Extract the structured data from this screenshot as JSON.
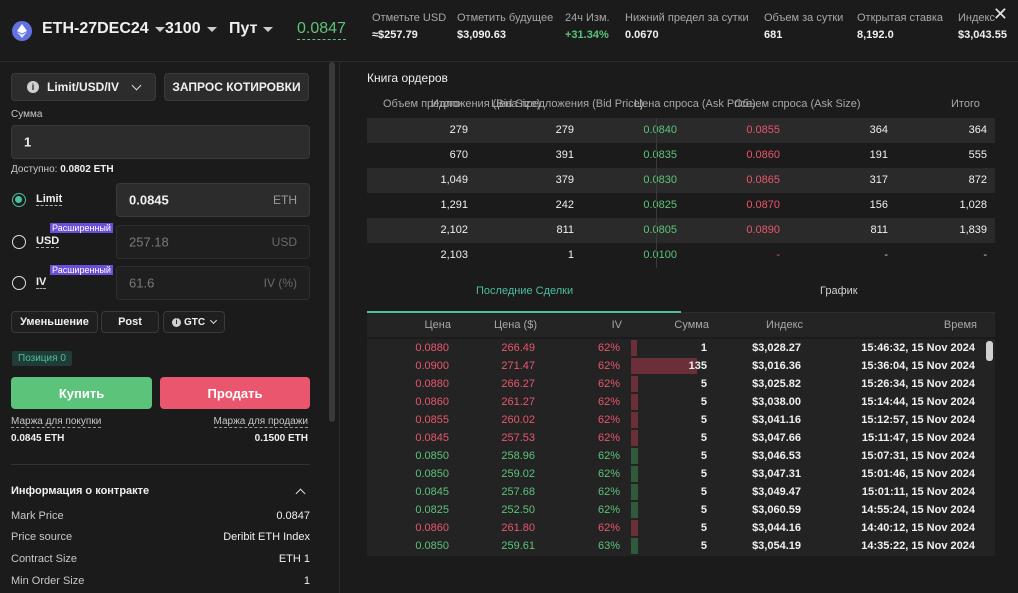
{
  "header": {
    "instrument": "ETH-27DEC24",
    "strike": "3100",
    "option_type": "Пут",
    "price": "0.0847",
    "stats": [
      {
        "label": "Отметьте USD",
        "value": "≈$257.79",
        "tone": "normal"
      },
      {
        "label": "Отметить будущее",
        "value": "$3,090.63",
        "tone": "normal"
      },
      {
        "label": "24ч Изм.",
        "value": "+31.34%",
        "tone": "green"
      },
      {
        "label": "Нижний предел за сутки",
        "value": "0.0670",
        "tone": "normal"
      },
      {
        "label": "Объем за сутки",
        "value": "681",
        "tone": "normal"
      },
      {
        "label": "Открытая ставка",
        "value": "8,192.0",
        "tone": "normal"
      },
      {
        "label": "Индекс",
        "value": "$3,043.55",
        "tone": "normal"
      }
    ],
    "close_icon": "close-icon"
  },
  "order_form": {
    "order_type": "Limit/USD/IV",
    "quote_button": "ЗАПРОС КОТИРОВКИ",
    "amount_label": "Сумма",
    "amount_value": "1",
    "available_label": "Доступно:",
    "available_value": "0.0802 ETH",
    "advanced_tag": "Расширенный",
    "limit_label": "Limit",
    "limit_value": "0.0845",
    "limit_unit": "ETH",
    "usd_label": "USD",
    "usd_value": "257.18",
    "usd_unit": "USD",
    "iv_label": "IV",
    "iv_value": "61.6",
    "iv_unit": "IV (%)",
    "reduce_button": "Уменьшение",
    "post_button": "Post",
    "tif": "GTC",
    "position_badge": "Позиция 0",
    "buy_button": "Купить",
    "sell_button": "Продать",
    "buy_margin_label": "Маржа для покупки",
    "buy_margin_value": "0.0845 ETH",
    "sell_margin_label": "Маржа для продажи",
    "sell_margin_value": "0.1500 ETH"
  },
  "contract_info": {
    "title": "Информация о контракте",
    "rows": [
      {
        "key": "Mark Price",
        "value": "0.0847"
      },
      {
        "key": "Price source",
        "value": "Deribit ETH Index"
      },
      {
        "key": "Contract Size",
        "value": "ETH 1"
      },
      {
        "key": "Min Order Size",
        "value": "1"
      }
    ]
  },
  "orderbook": {
    "title": "Книга ордеров",
    "headers": [
      "Объем предложения (Bid Size)",
      "Итого",
      "Цена предложения (Bid Price)",
      "Цена спроса (Ask Price)",
      "Объем спроса (Ask Size)",
      "Итого"
    ],
    "rows": [
      {
        "total_bid": "279",
        "bid_size": "279",
        "bid": "0.0840",
        "ask": "0.0855",
        "ask_size": "364",
        "total_ask": "364"
      },
      {
        "total_bid": "670",
        "bid_size": "391",
        "bid": "0.0835",
        "ask": "0.0860",
        "ask_size": "191",
        "total_ask": "555"
      },
      {
        "total_bid": "1,049",
        "bid_size": "379",
        "bid": "0.0830",
        "ask": "0.0865",
        "ask_size": "317",
        "total_ask": "872"
      },
      {
        "total_bid": "1,291",
        "bid_size": "242",
        "bid": "0.0825",
        "ask": "0.0870",
        "ask_size": "156",
        "total_ask": "1,028"
      },
      {
        "total_bid": "2,102",
        "bid_size": "811",
        "bid": "0.0805",
        "ask": "0.0890",
        "ask_size": "811",
        "total_ask": "1,839"
      },
      {
        "total_bid": "2,103",
        "bid_size": "1",
        "bid": "0.0100",
        "ask": "-",
        "ask_size": "-",
        "total_ask": "-"
      }
    ]
  },
  "tabs": {
    "trades": "Последние Сделки",
    "chart": "График"
  },
  "trades": {
    "headers": [
      "Цена",
      "Цена ($)",
      "IV",
      "Сумма",
      "Индекс",
      "Время"
    ],
    "rows": [
      {
        "price": "0.0880",
        "usd": "266.49",
        "iv": "62%",
        "amount": "1",
        "index": "$3,028.27",
        "time": "15:46:32, 15 Nov 2024",
        "side": "sell",
        "fill": 0.0
      },
      {
        "price": "0.0900",
        "usd": "271.47",
        "iv": "62%",
        "amount": "135",
        "index": "$3,016.36",
        "time": "15:36:04, 15 Nov 2024",
        "side": "sell",
        "fill": 1.0
      },
      {
        "price": "0.0880",
        "usd": "266.27",
        "iv": "62%",
        "amount": "5",
        "index": "$3,025.82",
        "time": "15:26:34, 15 Nov 2024",
        "side": "sell",
        "fill": 0.1
      },
      {
        "price": "0.0860",
        "usd": "261.27",
        "iv": "62%",
        "amount": "5",
        "index": "$3,038.00",
        "time": "15:14:44, 15 Nov 2024",
        "side": "sell",
        "fill": 0.1
      },
      {
        "price": "0.0855",
        "usd": "260.02",
        "iv": "62%",
        "amount": "5",
        "index": "$3,041.16",
        "time": "15:12:57, 15 Nov 2024",
        "side": "sell",
        "fill": 0.1
      },
      {
        "price": "0.0845",
        "usd": "257.53",
        "iv": "62%",
        "amount": "5",
        "index": "$3,047.66",
        "time": "15:11:47, 15 Nov 2024",
        "side": "sell",
        "fill": 0.1
      },
      {
        "price": "0.0850",
        "usd": "258.96",
        "iv": "62%",
        "amount": "5",
        "index": "$3,046.53",
        "time": "15:07:31, 15 Nov 2024",
        "side": "buy",
        "fill": 0.1
      },
      {
        "price": "0.0850",
        "usd": "259.02",
        "iv": "62%",
        "amount": "5",
        "index": "$3,047.31",
        "time": "15:01:46, 15 Nov 2024",
        "side": "buy",
        "fill": 0.1
      },
      {
        "price": "0.0845",
        "usd": "257.68",
        "iv": "62%",
        "amount": "5",
        "index": "$3,049.47",
        "time": "15:01:11, 15 Nov 2024",
        "side": "buy",
        "fill": 0.1
      },
      {
        "price": "0.0825",
        "usd": "252.50",
        "iv": "62%",
        "amount": "5",
        "index": "$3,060.59",
        "time": "14:55:24, 15 Nov 2024",
        "side": "buy",
        "fill": 0.1
      },
      {
        "price": "0.0860",
        "usd": "261.80",
        "iv": "62%",
        "amount": "5",
        "index": "$3,044.16",
        "time": "14:40:12, 15 Nov 2024",
        "side": "sell",
        "fill": 0.1
      },
      {
        "price": "0.0850",
        "usd": "259.61",
        "iv": "63%",
        "amount": "5",
        "index": "$3,054.19",
        "time": "14:35:22, 15 Nov 2024",
        "side": "buy",
        "fill": 0.1
      }
    ]
  },
  "colors": {
    "green": "#5cc37a",
    "red": "#e9566d",
    "teal": "#4dbfa0",
    "buy_bar": "#2f5a3b",
    "sell_bar": "#6a2f38"
  }
}
